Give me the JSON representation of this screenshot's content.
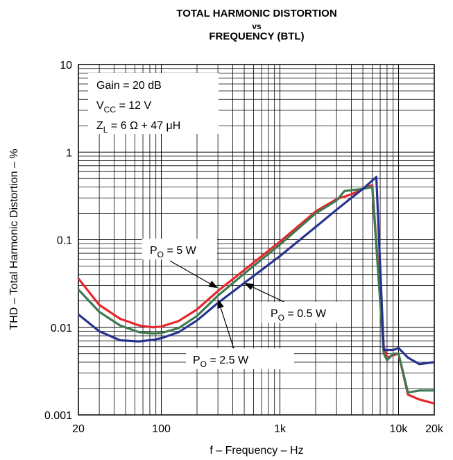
{
  "chart_data": {
    "type": "line",
    "title": "TOTAL HARMONIC DISTORTION",
    "title_vs": "vs",
    "subtitle": "FREQUENCY (BTL)",
    "xlabel": "f – Frequency – Hz",
    "ylabel": "THD – Total Harmonic Distortion – %",
    "x_scale": "log",
    "y_scale": "log",
    "xlim": [
      20,
      20000
    ],
    "ylim": [
      0.001,
      10
    ],
    "grid": true,
    "x_ticks": [
      {
        "value": 20,
        "label": "20"
      },
      {
        "value": 100,
        "label": "100"
      },
      {
        "value": 1000,
        "label": "1k"
      },
      {
        "value": 10000,
        "label": "10k"
      },
      {
        "value": 20000,
        "label": "20k"
      }
    ],
    "y_ticks": [
      {
        "value": 10,
        "label": "10"
      },
      {
        "value": 1,
        "label": "1"
      },
      {
        "value": 0.1,
        "label": "0.1"
      },
      {
        "value": 0.01,
        "label": "0.01"
      },
      {
        "value": 0.001,
        "label": "0.001"
      }
    ],
    "conditions": {
      "gain": "Gain = 20 dB",
      "vcc_main": "V",
      "vcc_sub": "CC",
      "vcc_value": " = 12 V",
      "zl_main": "Z",
      "zl_sub": "L",
      "zl_value": " = 6 Ω + 47 μH"
    },
    "series": [
      {
        "name": "PO = 5 W",
        "label_main": "P",
        "label_sub": "O",
        "label_value": " = 5 W",
        "color": "#e8262b",
        "points": [
          [
            20,
            0.036
          ],
          [
            30,
            0.018
          ],
          [
            45,
            0.0125
          ],
          [
            65,
            0.0105
          ],
          [
            85,
            0.01
          ],
          [
            100,
            0.0102
          ],
          [
            140,
            0.0118
          ],
          [
            200,
            0.016
          ],
          [
            300,
            0.026
          ],
          [
            500,
            0.045
          ],
          [
            1000,
            0.095
          ],
          [
            2000,
            0.21
          ],
          [
            3000,
            0.29
          ],
          [
            4000,
            0.33
          ],
          [
            5500,
            0.4
          ],
          [
            6000,
            0.42
          ],
          [
            7500,
            0.006
          ],
          [
            8000,
            0.0045
          ],
          [
            9000,
            0.0048
          ],
          [
            10000,
            0.005
          ],
          [
            12000,
            0.0017
          ],
          [
            15000,
            0.0015
          ],
          [
            20000,
            0.00135
          ]
        ]
      },
      {
        "name": "PO = 2.5 W",
        "label_main": "P",
        "label_sub": "O",
        "label_value": " = 2.5 W",
        "color": "#3d7a52",
        "points": [
          [
            20,
            0.027
          ],
          [
            30,
            0.015
          ],
          [
            45,
            0.0105
          ],
          [
            65,
            0.0088
          ],
          [
            85,
            0.0085
          ],
          [
            100,
            0.0086
          ],
          [
            140,
            0.0098
          ],
          [
            200,
            0.0135
          ],
          [
            300,
            0.023
          ],
          [
            500,
            0.041
          ],
          [
            1000,
            0.088
          ],
          [
            2000,
            0.2
          ],
          [
            3000,
            0.28
          ],
          [
            3500,
            0.36
          ],
          [
            5000,
            0.38
          ],
          [
            6000,
            0.4
          ],
          [
            7500,
            0.005
          ],
          [
            8000,
            0.0042
          ],
          [
            9000,
            0.005
          ],
          [
            10000,
            0.005
          ],
          [
            12000,
            0.0018
          ],
          [
            15000,
            0.0019
          ],
          [
            20000,
            0.0019
          ]
        ]
      },
      {
        "name": "PO = 0.5 W",
        "label_main": "P",
        "label_sub": "O",
        "label_value": " = 0.5 W",
        "color": "#27338f",
        "points": [
          [
            20,
            0.014
          ],
          [
            30,
            0.009
          ],
          [
            45,
            0.0071
          ],
          [
            65,
            0.0069
          ],
          [
            85,
            0.0072
          ],
          [
            100,
            0.0075
          ],
          [
            140,
            0.0088
          ],
          [
            200,
            0.012
          ],
          [
            300,
            0.019
          ],
          [
            500,
            0.032
          ],
          [
            1000,
            0.065
          ],
          [
            2000,
            0.14
          ],
          [
            3000,
            0.22
          ],
          [
            4000,
            0.3
          ],
          [
            5000,
            0.38
          ],
          [
            6500,
            0.52
          ],
          [
            7500,
            0.0055
          ],
          [
            8000,
            0.0055
          ],
          [
            9000,
            0.0055
          ],
          [
            10000,
            0.0058
          ],
          [
            12000,
            0.0045
          ],
          [
            15000,
            0.0038
          ],
          [
            20000,
            0.004
          ]
        ]
      }
    ],
    "annotations": [
      {
        "series": 0,
        "arrow_to": [
          300,
          0.028
        ]
      },
      {
        "series": 1,
        "arrow_to": [
          300,
          0.021
        ]
      },
      {
        "series": 2,
        "arrow_to": [
          500,
          0.032
        ]
      }
    ]
  }
}
